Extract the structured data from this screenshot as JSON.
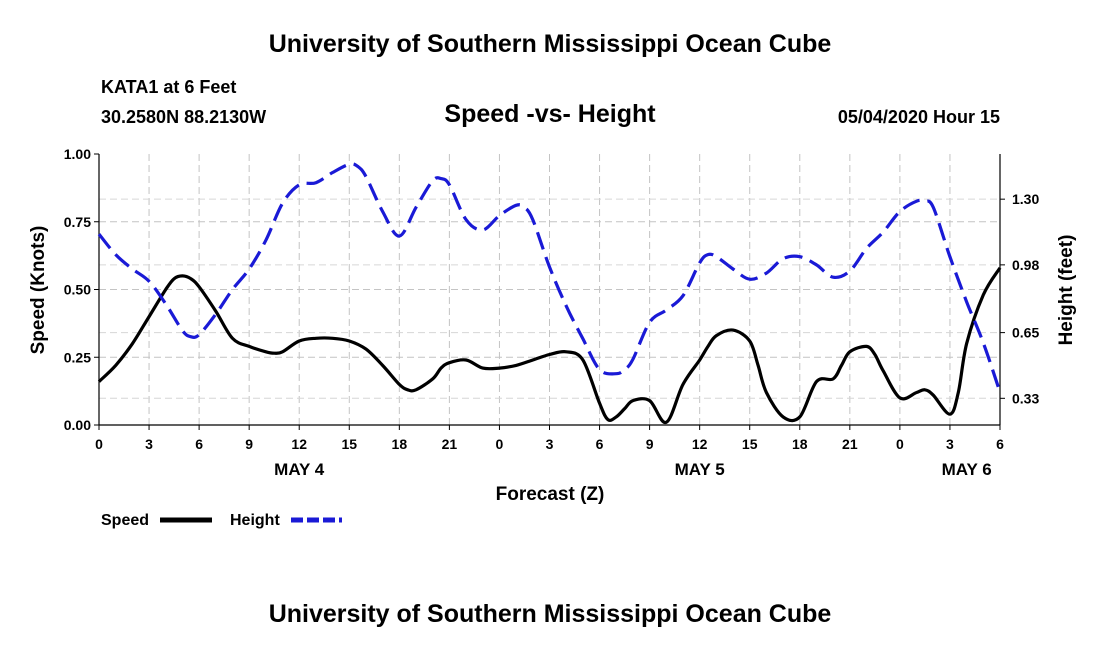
{
  "header": {
    "title": "University of Southern Mississippi Ocean Cube",
    "station": "KATA1 at 6 Feet",
    "coords": "30.2580N 88.2130W",
    "subtitle": "Speed -vs- Height",
    "datestamp": "05/04/2020 Hour 15"
  },
  "footer": {
    "title": "University of Southern Mississippi Ocean Cube"
  },
  "chart_data": {
    "type": "line",
    "xlabel": "Forecast (Z)",
    "ylabel": "Speed (Knots)",
    "y2label": "Height (feet)",
    "x_range_hours": [
      0,
      54
    ],
    "ylim": [
      0,
      1
    ],
    "y2lim": [
      0.2,
      1.52
    ],
    "x_ticks": [
      {
        "h": 0,
        "label": "0"
      },
      {
        "h": 3,
        "label": "3"
      },
      {
        "h": 6,
        "label": "6"
      },
      {
        "h": 9,
        "label": "9"
      },
      {
        "h": 12,
        "label": "12"
      },
      {
        "h": 15,
        "label": "15"
      },
      {
        "h": 18,
        "label": "18"
      },
      {
        "h": 21,
        "label": "21"
      },
      {
        "h": 24,
        "label": "0"
      },
      {
        "h": 27,
        "label": "3"
      },
      {
        "h": 30,
        "label": "6"
      },
      {
        "h": 33,
        "label": "9"
      },
      {
        "h": 36,
        "label": "12"
      },
      {
        "h": 39,
        "label": "15"
      },
      {
        "h": 42,
        "label": "18"
      },
      {
        "h": 45,
        "label": "21"
      },
      {
        "h": 48,
        "label": "0"
      },
      {
        "h": 51,
        "label": "3"
      },
      {
        "h": 54,
        "label": "6"
      }
    ],
    "y_ticks": [
      {
        "v": 0,
        "label": "0.00"
      },
      {
        "v": 0.25,
        "label": "0.25"
      },
      {
        "v": 0.5,
        "label": "0.50"
      },
      {
        "v": 0.75,
        "label": "0.75"
      },
      {
        "v": 1,
        "label": "1.00"
      }
    ],
    "y2_ticks": [
      {
        "v": 0.33,
        "label": "0.33"
      },
      {
        "v": 0.65,
        "label": "0.65"
      },
      {
        "v": 0.98,
        "label": "0.98"
      },
      {
        "v": 1.3,
        "label": "1.30"
      }
    ],
    "day_labels": [
      {
        "h": 12,
        "label": "MAY 4"
      },
      {
        "h": 36,
        "label": "MAY 5"
      },
      {
        "h": 52,
        "label": "MAY 6"
      }
    ],
    "legend": [
      {
        "name": "Speed",
        "color": "#000000",
        "style": "solid"
      },
      {
        "name": "Height",
        "color": "#1a1ad6",
        "style": "dashed"
      }
    ],
    "series": [
      {
        "name": "Speed",
        "axis": "left",
        "color": "#000000",
        "x": [
          0,
          1,
          2,
          3,
          4,
          4.5,
          5,
          5.5,
          6,
          7,
          8,
          9,
          10,
          10.5,
          11,
          12,
          13,
          14,
          15,
          16,
          17,
          18,
          18.5,
          19,
          20,
          20.5,
          21,
          22,
          23,
          24,
          25,
          26,
          27,
          28,
          29,
          30,
          30.5,
          31,
          31.5,
          32,
          33,
          34,
          35,
          36,
          36.5,
          37,
          38,
          39,
          39.5,
          40,
          41,
          42,
          43,
          44,
          44.5,
          45,
          46,
          46.5,
          47,
          48,
          49,
          49.5,
          50,
          51,
          51.5,
          52,
          53,
          54
        ],
        "values": [
          0.16,
          0.22,
          0.3,
          0.4,
          0.5,
          0.54,
          0.55,
          0.54,
          0.51,
          0.42,
          0.32,
          0.29,
          0.27,
          0.265,
          0.27,
          0.31,
          0.32,
          0.32,
          0.31,
          0.28,
          0.22,
          0.15,
          0.13,
          0.13,
          0.17,
          0.21,
          0.23,
          0.24,
          0.21,
          0.21,
          0.22,
          0.24,
          0.26,
          0.27,
          0.24,
          0.08,
          0.02,
          0.03,
          0.06,
          0.09,
          0.09,
          0.01,
          0.15,
          0.24,
          0.29,
          0.33,
          0.35,
          0.31,
          0.22,
          0.12,
          0.03,
          0.03,
          0.16,
          0.17,
          0.22,
          0.27,
          0.29,
          0.26,
          0.2,
          0.1,
          0.12,
          0.13,
          0.11,
          0.04,
          0.12,
          0.3,
          0.48,
          0.58
        ]
      },
      {
        "name": "Height",
        "axis": "right",
        "color": "#1a1ad6",
        "x": [
          0,
          1,
          2,
          3,
          4,
          5,
          5.5,
          6,
          7,
          8,
          9,
          10,
          11,
          12,
          13,
          14,
          15,
          15.5,
          16,
          17,
          18,
          19,
          20,
          20.5,
          21,
          22,
          23,
          24,
          25,
          25.5,
          26,
          27,
          28,
          29,
          30,
          31,
          31.5,
          32,
          33,
          34,
          35,
          36,
          36.5,
          37,
          38,
          39,
          40,
          41,
          42,
          43,
          44,
          45,
          46,
          47,
          48,
          49,
          49.5,
          50,
          51,
          52,
          53,
          54
        ],
        "values": [
          1.13,
          1.03,
          0.96,
          0.9,
          0.79,
          0.66,
          0.63,
          0.64,
          0.74,
          0.86,
          0.96,
          1.1,
          1.28,
          1.37,
          1.38,
          1.43,
          1.47,
          1.46,
          1.41,
          1.24,
          1.12,
          1.26,
          1.39,
          1.4,
          1.37,
          1.2,
          1.15,
          1.22,
          1.27,
          1.26,
          1.2,
          0.97,
          0.78,
          0.62,
          0.47,
          0.45,
          0.47,
          0.52,
          0.7,
          0.76,
          0.83,
          0.99,
          1.03,
          1.02,
          0.96,
          0.91,
          0.94,
          1.01,
          1.02,
          0.98,
          0.92,
          0.95,
          1.06,
          1.14,
          1.24,
          1.29,
          1.29,
          1.26,
          1.02,
          0.8,
          0.6,
          0.36
        ]
      }
    ]
  }
}
